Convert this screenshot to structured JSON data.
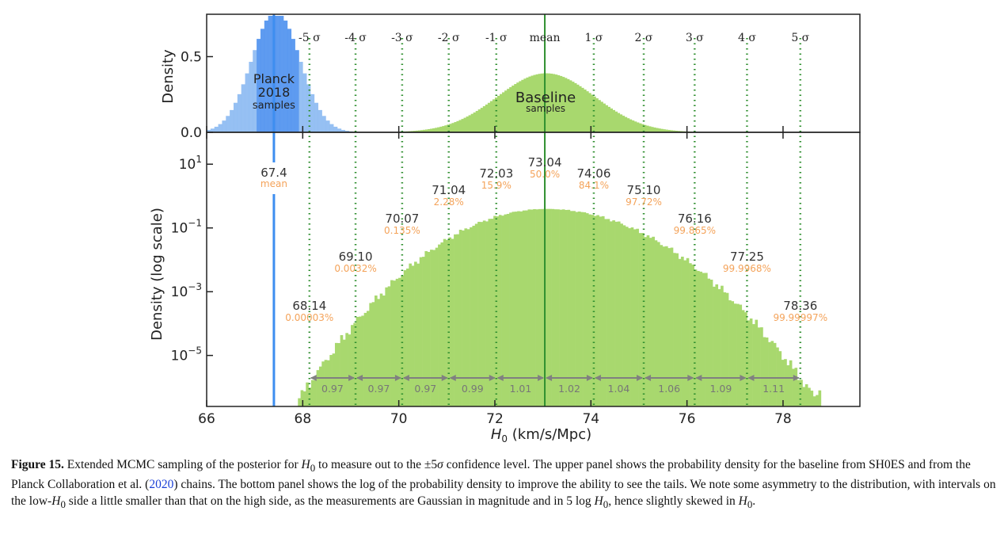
{
  "chart_data": {
    "type": "bar",
    "x_label_pre": "H",
    "x_label_sub": "0",
    "x_label_post": " (km/s/Mpc)",
    "xlim": [
      66,
      79.6
    ],
    "xticks": [
      66,
      68,
      70,
      72,
      74,
      76,
      78
    ],
    "top_panel": {
      "ylabel": "Density",
      "ylim": [
        0,
        0.78
      ],
      "yticks": [
        {
          "v": 0.0,
          "label": "0.0"
        },
        {
          "v": 0.5,
          "label": "0.5"
        }
      ],
      "planck": {
        "mean": 67.4,
        "sigma": 0.5,
        "color": "#8bb9f2",
        "dark_color": "#4d90ee",
        "label_lines": [
          "Planck",
          "2018",
          "samples"
        ]
      },
      "baseline": {
        "mean": 73.04,
        "sigma": 1.01,
        "peak": 0.39,
        "color": "#a8d86e",
        "label": "Baseline",
        "sublabel": "samples"
      },
      "sigma_labels": [
        "-5 σ",
        "-4 σ",
        "-3 σ",
        "-2 σ",
        "-1 σ",
        "mean",
        "1 σ",
        "2 σ",
        "3 σ",
        "4 σ",
        "5 σ"
      ]
    },
    "bottom_panel": {
      "ylabel": "Density (log scale)",
      "ylim_log10": [
        -6.6,
        2.0
      ],
      "yticks": [
        {
          "v": 1,
          "base": "10",
          "exp": "1"
        },
        {
          "v": -1,
          "base": "10",
          "exp": "−1"
        },
        {
          "v": -3,
          "base": "10",
          "exp": "−3"
        },
        {
          "v": -5,
          "base": "10",
          "exp": "−5"
        }
      ],
      "planck_mean_label": "67.4",
      "planck_mean_sub": "mean",
      "levels": [
        {
          "x": 68.14,
          "label": "68.14",
          "pct": "0.00003%"
        },
        {
          "x": 69.1,
          "label": "69.10",
          "pct": "0.0032%"
        },
        {
          "x": 70.07,
          "label": "70.07",
          "pct": "0.135%"
        },
        {
          "x": 71.04,
          "label": "71.04",
          "pct": "2.28%"
        },
        {
          "x": 72.03,
          "label": "72.03",
          "pct": "15.9%"
        },
        {
          "x": 73.04,
          "label": "73.04",
          "pct": "50.0%"
        },
        {
          "x": 74.06,
          "label": "74.06",
          "pct": "84.1%"
        },
        {
          "x": 75.1,
          "label": "75.10",
          "pct": "97.72%"
        },
        {
          "x": 76.16,
          "label": "76.16",
          "pct": "99.865%"
        },
        {
          "x": 77.25,
          "label": "77.25",
          "pct": "99.9968%"
        },
        {
          "x": 78.36,
          "label": "78.36",
          "pct": "99.99997%"
        }
      ],
      "intervals": [
        "0.97",
        "0.97",
        "0.97",
        "0.99",
        "1.01",
        "1.02",
        "1.04",
        "1.06",
        "1.09",
        "1.11"
      ]
    },
    "colors": {
      "sigma_line": "#2f8f2f",
      "mean_line": "#2f8f2f",
      "planck_line": "#3d8ef0",
      "pct_text": "#f4a35a",
      "interval_arrow": "#808080"
    }
  },
  "caption": {
    "label": "Figure 15.",
    "text_1": " Extended MCMC sampling of the posterior for ",
    "h_sym": "H",
    "h_sub": "0",
    "text_2": " to measure out to the ±5",
    "sigma_sym": "σ",
    "text_3": " confidence level. The upper panel shows the probability density for the baseline from SH0ES and from the Planck Collaboration et al. (",
    "cite_year": "2020",
    "text_4": ") chains. The bottom panel shows the log of the probability density to improve the ability to see the tails. We note some asymmetry to the distribution, with intervals on the low-",
    "text_5": " side a little smaller than that on the high side, as the measurements are Gaussian in magnitude and in 5 log ",
    "text_6": ", hence slightly skewed in ",
    "text_7": "."
  }
}
